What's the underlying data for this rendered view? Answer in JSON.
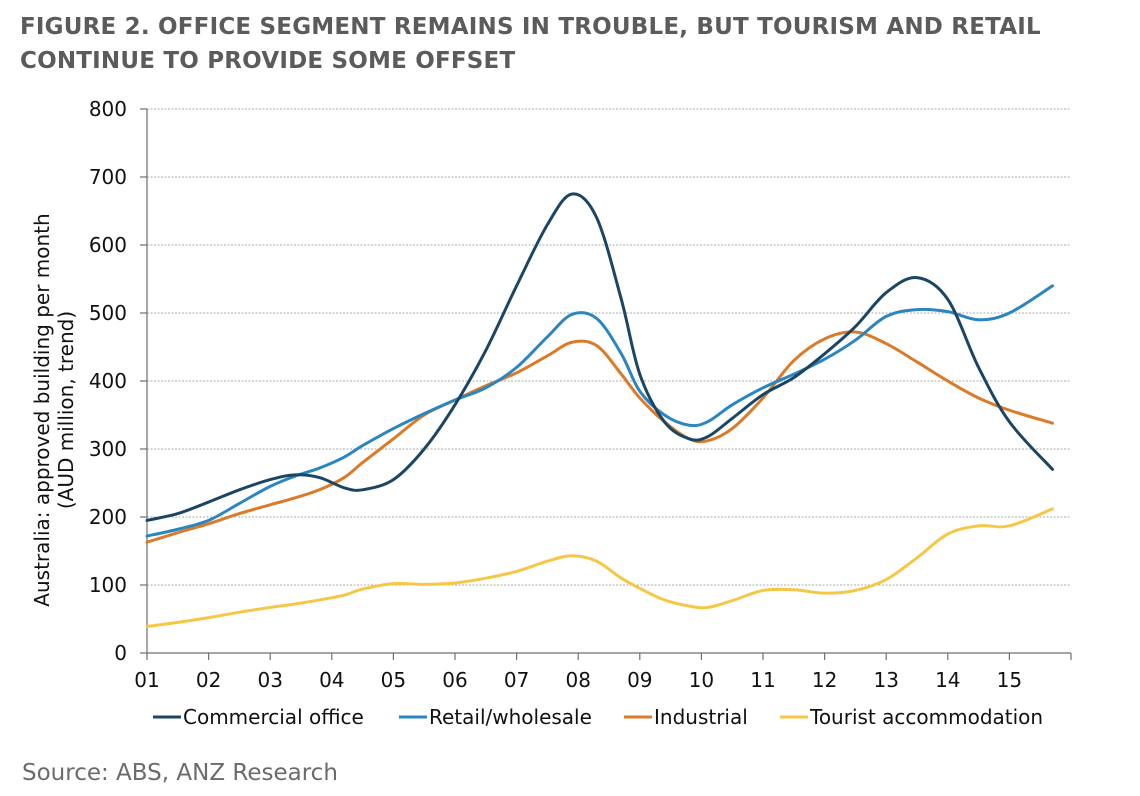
{
  "title": {
    "line1": "FIGURE 2. OFFICE SEGMENT REMAINS IN TROUBLE, BUT TOURISM AND RETAIL",
    "line2": "CONTINUE TO PROVIDE SOME OFFSET"
  },
  "source": "Source: ABS, ANZ Research",
  "colors": {
    "Commercial office": "#1b4564",
    "Retail/wholesale": "#2b86bf",
    "Industrial": "#db7a28",
    "Tourist accommodation": "#f6c744",
    "grid": "#a9a9a9",
    "axis": "#6f6f6f"
  },
  "chart_data": {
    "type": "line",
    "title": "",
    "xlabel": "",
    "ylabel_lines": [
      "Australia: approved building per month",
      "(AUD million, trend)"
    ],
    "ylim": [
      0,
      800
    ],
    "yticks": [
      0,
      100,
      200,
      300,
      400,
      500,
      600,
      700,
      800
    ],
    "xlim": [
      2001,
      2016
    ],
    "xticks": [
      "01",
      "02",
      "03",
      "04",
      "05",
      "06",
      "07",
      "08",
      "09",
      "10",
      "11",
      "12",
      "13",
      "14",
      "15"
    ],
    "grid": true,
    "legend_position": "bottom",
    "x": [
      2001.0,
      2001.5,
      2002.0,
      2002.5,
      2003.0,
      2003.4,
      2003.8,
      2004.2,
      2004.5,
      2005.0,
      2005.5,
      2006.0,
      2006.5,
      2007.0,
      2007.5,
      2007.9,
      2008.3,
      2008.7,
      2009.0,
      2009.4,
      2009.8,
      2010.1,
      2010.5,
      2011.0,
      2011.5,
      2012.0,
      2012.5,
      2013.0,
      2013.5,
      2014.0,
      2014.5,
      2015.0,
      2015.7
    ],
    "series": [
      {
        "name": "Commercial office",
        "values": [
          195,
          205,
          222,
          240,
          255,
          262,
          258,
          243,
          240,
          255,
          300,
          365,
          445,
          540,
          630,
          675,
          640,
          520,
          410,
          340,
          315,
          318,
          345,
          380,
          405,
          440,
          480,
          530,
          552,
          520,
          420,
          340,
          270
        ]
      },
      {
        "name": "Retail/wholesale",
        "values": [
          172,
          182,
          195,
          220,
          245,
          260,
          272,
          288,
          305,
          330,
          352,
          372,
          390,
          420,
          465,
          498,
          492,
          440,
          385,
          350,
          335,
          340,
          365,
          390,
          410,
          432,
          460,
          495,
          505,
          502,
          490,
          500,
          540
        ]
      },
      {
        "name": "Industrial",
        "values": [
          163,
          177,
          190,
          205,
          218,
          228,
          240,
          258,
          280,
          315,
          350,
          372,
          393,
          412,
          437,
          457,
          452,
          410,
          375,
          340,
          315,
          312,
          330,
          375,
          430,
          462,
          472,
          455,
          428,
          400,
          375,
          357,
          338
        ]
      },
      {
        "name": "Tourist accommodation",
        "values": [
          39,
          45,
          52,
          60,
          67,
          72,
          78,
          85,
          94,
          102,
          101,
          103,
          110,
          120,
          135,
          143,
          135,
          110,
          95,
          78,
          69,
          67,
          77,
          92,
          93,
          88,
          92,
          108,
          140,
          175,
          187,
          187,
          212
        ]
      }
    ]
  }
}
